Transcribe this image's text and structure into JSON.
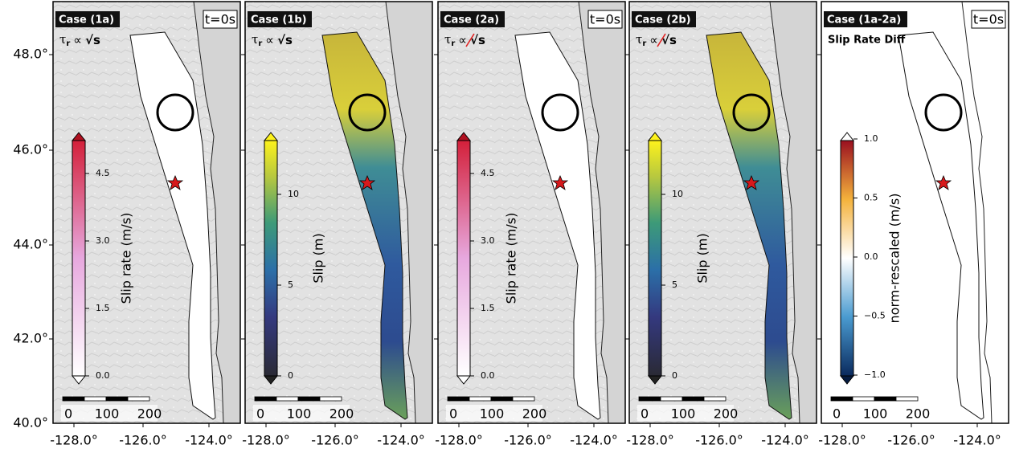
{
  "axes": {
    "yticks": [
      "48.0°",
      "46.0°",
      "44.0°",
      "42.0°",
      "40.0°"
    ],
    "xticks": [
      "-128.0°",
      "-126.0°",
      "-124.0°"
    ]
  },
  "panels": [
    {
      "case": "Case (1a)",
      "time": "t=0s",
      "formula": {
        "lhs": "τ",
        "sub": "r",
        "rel": "∝",
        "rhs": "√s"
      },
      "negated": false,
      "fill": "none",
      "colorbar": {
        "cmap": "slip-rate",
        "label": "Slip rate (m/s)",
        "ticks": [
          "0.0",
          "1.5",
          "3.0",
          "4.5"
        ]
      },
      "scalebar": [
        "0",
        "100",
        "200"
      ]
    },
    {
      "case": "Case (1b)",
      "formula": {
        "lhs": "τ",
        "sub": "r",
        "rel": "∝",
        "rhs": "√s"
      },
      "negated": false,
      "fill": "slip",
      "colorbar": {
        "cmap": "slip",
        "label": "Slip (m)",
        "ticks": [
          "0",
          "5",
          "10"
        ]
      },
      "scalebar": [
        "0",
        "100",
        "200"
      ]
    },
    {
      "case": "Case (2a)",
      "time": "t=0s",
      "formula": {
        "lhs": "τ",
        "sub": "r",
        "rel": "∝",
        "rhs": "√s"
      },
      "negated": true,
      "fill": "none",
      "colorbar": {
        "cmap": "slip-rate",
        "label": "Slip rate (m/s)",
        "ticks": [
          "0.0",
          "1.5",
          "3.0",
          "4.5"
        ]
      },
      "scalebar": [
        "0",
        "100",
        "200"
      ]
    },
    {
      "case": "Case (2b)",
      "formula": {
        "lhs": "τ",
        "sub": "r",
        "rel": "∝",
        "rhs": "√s"
      },
      "negated": true,
      "fill": "slip",
      "colorbar": {
        "cmap": "slip",
        "label": "Slip (m)",
        "ticks": [
          "0",
          "5",
          "10"
        ]
      },
      "scalebar": [
        "0",
        "100",
        "200"
      ]
    },
    {
      "case": "Case (1a-2a)",
      "time": "t=0s",
      "subtitle": "Slip Rate Diff",
      "fill": "none",
      "colorbar": {
        "cmap": "diff",
        "label": "norm-rescaled (m/s)",
        "ticks": [
          "−1.0",
          "−0.5",
          "0.0",
          "0.5",
          "1.0"
        ]
      },
      "scalebar": [
        "0",
        "100",
        "200"
      ]
    }
  ]
}
